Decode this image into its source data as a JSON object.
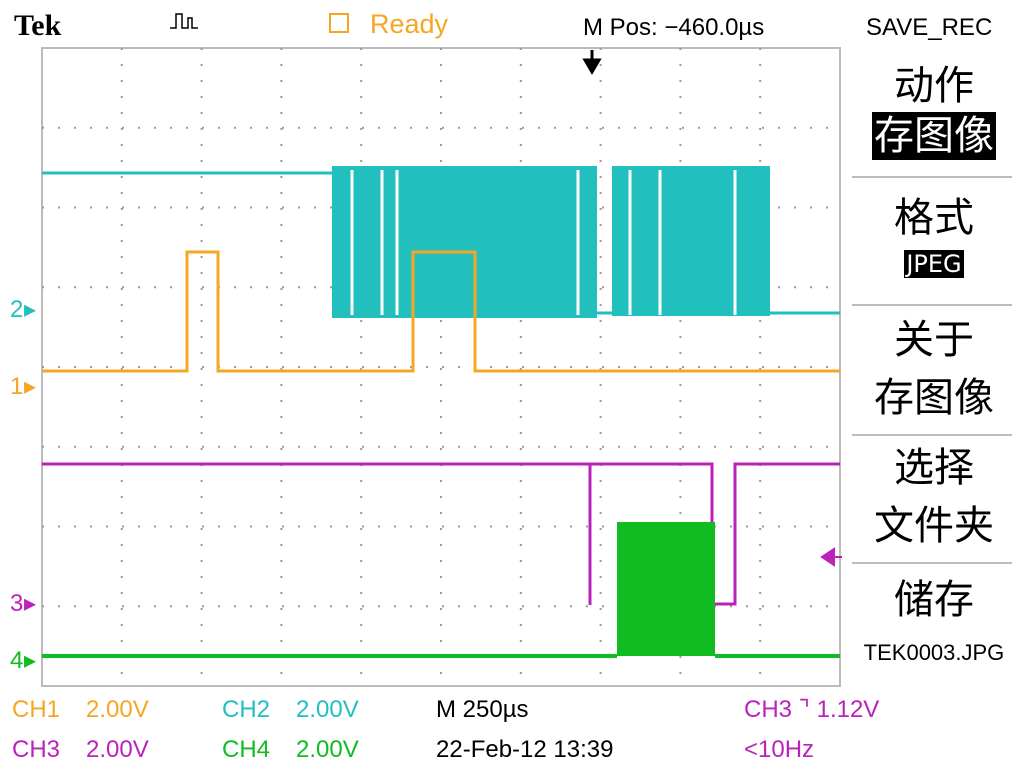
{
  "header": {
    "brand": "Tek",
    "status": "Ready",
    "position": "M Pos: −460.0µs",
    "menu_title": "SAVE_REC"
  },
  "menu": [
    {
      "label": "动作",
      "value": "存图像"
    },
    {
      "label": "格式",
      "value": "JPEG"
    },
    {
      "label": "关于",
      "value": "存图像"
    },
    {
      "label": "选择",
      "value": "文件夹"
    },
    {
      "label": "储存",
      "value": "TEK0003.JPG"
    }
  ],
  "markers": [
    "2",
    "1",
    "3",
    "4"
  ],
  "status_bar": {
    "row1": [
      "CH1",
      "2.00V",
      "CH2",
      "2.00V",
      "M 250µs",
      "CH3 ⌝ 1.12V"
    ],
    "row2": [
      "CH3",
      "2.00V",
      "CH4",
      "2.00V",
      "22-Feb-12 13:39",
      "<10Hz"
    ]
  }
}
